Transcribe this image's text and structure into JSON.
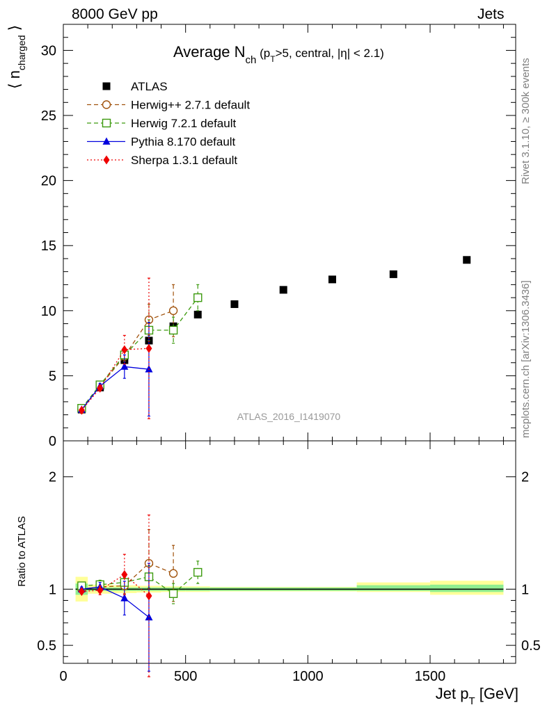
{
  "header": {
    "left": "8000 GeV pp",
    "right": "Jets"
  },
  "side_labels": {
    "rivet": "Rivet 3.1.10, ≥ 300k events",
    "mcplots": "mcplots.cern.ch [arXiv:1306.3436]"
  },
  "chart_data": [
    {
      "type": "scatter",
      "title": "Average N_ch (p_T>5, central, |η| < 2.1)",
      "title_main": "Average N",
      "title_sub": "ch",
      "title_rest": "(p",
      "title_rest_sub": "T",
      "title_tail": ">5, central, |η| < 2.1)",
      "ylabel": "⟨ n_charged ⟩",
      "ylabel_main": "⟨ n",
      "ylabel_sub": "charged",
      "ylabel_close": "⟩",
      "watermark": "ATLAS_2016_I1419070",
      "xlim": [
        0,
        1850
      ],
      "ylim": [
        0,
        32
      ],
      "yticks": [
        0,
        5,
        10,
        15,
        20,
        25,
        30
      ],
      "legend_position": "top-left",
      "series": [
        {
          "name": "ATLAS",
          "color": "#000000",
          "marker": "square-filled",
          "line": "none",
          "x": [
            75,
            150,
            250,
            350,
            450,
            550,
            700,
            900,
            1100,
            1350,
            1650
          ],
          "y": [
            2.4,
            4.1,
            6.2,
            7.7,
            8.8,
            9.7,
            10.5,
            11.6,
            12.4,
            12.8,
            13.9
          ],
          "err": [
            0,
            0,
            0,
            0,
            0,
            0,
            0,
            0,
            0,
            0,
            0
          ]
        },
        {
          "name": "Herwig++ 2.7.1 default",
          "color": "#a0520c",
          "marker": "circle-open",
          "line": "dashed",
          "x": [
            75,
            150,
            250,
            350,
            450
          ],
          "y": [
            2.4,
            4.2,
            6.5,
            9.3,
            10.0
          ],
          "err": [
            0.1,
            0.2,
            0.4,
            1.2,
            2.0
          ]
        },
        {
          "name": "Herwig 7.2.1 default",
          "color": "#3c9a0e",
          "marker": "square-open",
          "line": "dashed",
          "x": [
            75,
            150,
            250,
            350,
            450,
            550
          ],
          "y": [
            2.5,
            4.3,
            6.6,
            8.5,
            8.5,
            11.0
          ],
          "err": [
            0.1,
            0.2,
            0.4,
            0.8,
            1.0,
            1.0
          ]
        },
        {
          "name": "Pythia 8.170 default",
          "color": "#0000dd",
          "marker": "triangle-filled",
          "line": "solid",
          "x": [
            75,
            150,
            250,
            350
          ],
          "y": [
            2.4,
            4.2,
            5.7,
            5.5
          ],
          "err": [
            0.1,
            0.2,
            0.9,
            3.6
          ]
        },
        {
          "name": "Sherpa 1.3.1 default",
          "color": "#ee0000",
          "marker": "diamond-filled",
          "line": "dotted",
          "x": [
            75,
            150,
            250,
            350
          ],
          "y": [
            2.35,
            4.05,
            7.0,
            7.1
          ],
          "err": [
            0.1,
            0.2,
            1.1,
            5.4
          ]
        }
      ]
    },
    {
      "type": "scatter",
      "ylabel": "Ratio to ATLAS",
      "xlabel": "Jet p_T [GeV]",
      "xlabel_main": "Jet p",
      "xlabel_sub": "T",
      "xlabel_unit": "[GeV]",
      "xlim": [
        0,
        1850
      ],
      "xticks": [
        0,
        500,
        1000,
        1500
      ],
      "ylim": [
        0.34,
        2.32
      ],
      "yticks": [
        0.5,
        1,
        2
      ],
      "reference_band": {
        "bins": [
          {
            "x0": 50,
            "x1": 100,
            "stat_lo": 0.95,
            "stat_hi": 1.05,
            "tot_lo": 0.89,
            "tot_hi": 1.11
          },
          {
            "x0": 100,
            "x1": 200,
            "stat_lo": 0.985,
            "stat_hi": 1.015,
            "tot_lo": 0.96,
            "tot_hi": 1.04
          },
          {
            "x0": 200,
            "x1": 300,
            "stat_lo": 0.985,
            "stat_hi": 1.015,
            "tot_lo": 0.965,
            "tot_hi": 1.035
          },
          {
            "x0": 300,
            "x1": 400,
            "stat_lo": 0.985,
            "stat_hi": 1.015,
            "tot_lo": 0.97,
            "tot_hi": 1.03
          },
          {
            "x0": 400,
            "x1": 500,
            "stat_lo": 0.985,
            "stat_hi": 1.015,
            "tot_lo": 0.975,
            "tot_hi": 1.025
          },
          {
            "x0": 500,
            "x1": 600,
            "stat_lo": 0.985,
            "stat_hi": 1.015,
            "tot_lo": 0.975,
            "tot_hi": 1.025
          },
          {
            "x0": 600,
            "x1": 800,
            "stat_lo": 0.985,
            "stat_hi": 1.015,
            "tot_lo": 0.98,
            "tot_hi": 1.02
          },
          {
            "x0": 800,
            "x1": 1000,
            "stat_lo": 0.985,
            "stat_hi": 1.015,
            "tot_lo": 0.98,
            "tot_hi": 1.02
          },
          {
            "x0": 1000,
            "x1": 1200,
            "stat_lo": 0.985,
            "stat_hi": 1.015,
            "tot_lo": 0.98,
            "tot_hi": 1.02
          },
          {
            "x0": 1200,
            "x1": 1500,
            "stat_lo": 0.985,
            "stat_hi": 1.035,
            "tot_lo": 0.975,
            "tot_hi": 1.06
          },
          {
            "x0": 1500,
            "x1": 1800,
            "stat_lo": 0.975,
            "stat_hi": 1.04,
            "tot_lo": 0.95,
            "tot_hi": 1.075
          }
        ],
        "stat_color": "#90ee90",
        "total_color": "#ffff99"
      },
      "series": [
        {
          "name": "Herwig++ 2.7.1 default",
          "color": "#a0520c",
          "marker": "circle-open",
          "line": "dashed",
          "x": [
            75,
            150,
            250,
            350,
            450
          ],
          "y": [
            1.0,
            1.02,
            1.03,
            1.23,
            1.14
          ],
          "err": [
            0.02,
            0.04,
            0.07,
            0.3,
            0.25
          ]
        },
        {
          "name": "Herwig 7.2.1 default",
          "color": "#3c9a0e",
          "marker": "square-open",
          "line": "dashed",
          "x": [
            75,
            150,
            250,
            350,
            450,
            550
          ],
          "y": [
            1.03,
            1.04,
            1.06,
            1.11,
            0.96,
            1.15
          ],
          "err": [
            0.03,
            0.04,
            0.06,
            0.1,
            0.09,
            0.1
          ]
        },
        {
          "name": "Pythia 8.170 default",
          "color": "#0000dd",
          "marker": "triangle-filled",
          "line": "solid",
          "x": [
            75,
            150,
            250,
            350
          ],
          "y": [
            1.0,
            1.02,
            0.92,
            0.75
          ],
          "err": [
            0.02,
            0.04,
            0.15,
            0.48
          ]
        },
        {
          "name": "Sherpa 1.3.1 default",
          "color": "#ee0000",
          "marker": "diamond-filled",
          "line": "dotted",
          "x": [
            75,
            150,
            250,
            350
          ],
          "y": [
            0.98,
            0.99,
            1.13,
            0.94
          ],
          "err": [
            0.02,
            0.04,
            0.18,
            0.72
          ]
        }
      ]
    }
  ]
}
